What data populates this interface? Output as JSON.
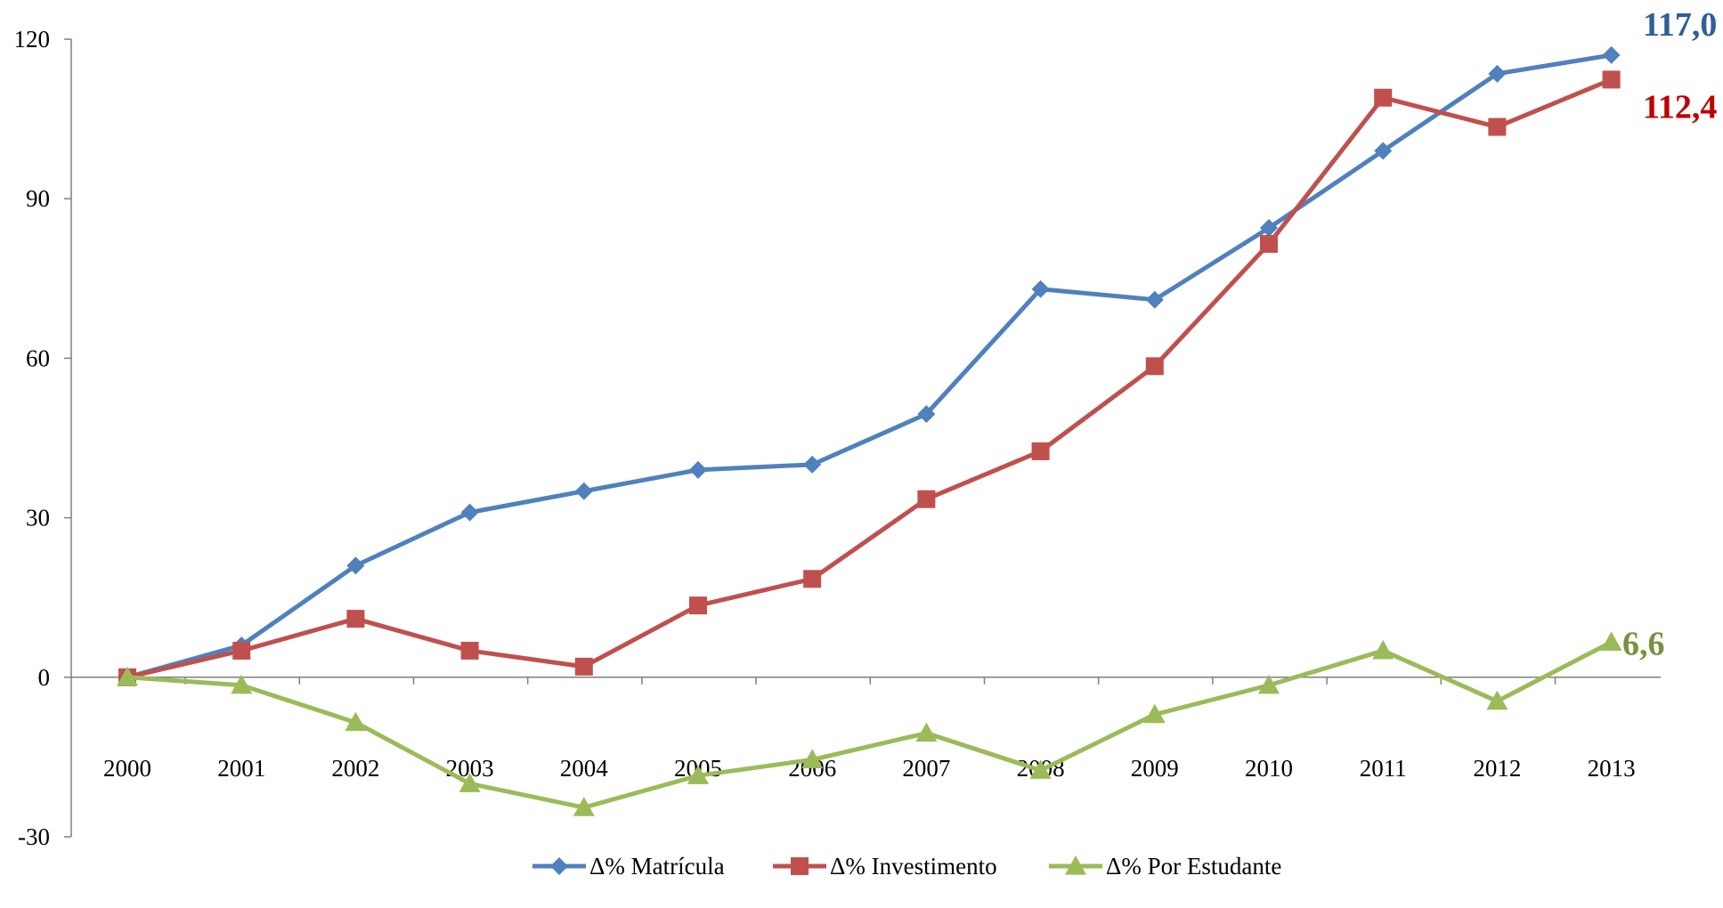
{
  "chart_data": {
    "type": "line",
    "categories": [
      "2000",
      "2001",
      "2002",
      "2003",
      "2004",
      "2005",
      "2006",
      "2007",
      "2008",
      "2009",
      "2010",
      "2011",
      "2012",
      "2013"
    ],
    "y_ticks": [
      "120",
      "90",
      "60",
      "30",
      "0",
      "-30"
    ],
    "ylim": [
      -30,
      120
    ],
    "grid": false,
    "legend_position": "bottom",
    "series": [
      {
        "name": "Δ% Matrícula",
        "color": "#4F81BD",
        "marker": "diamond",
        "values": [
          0,
          6,
          21,
          31,
          35,
          39,
          40,
          49.5,
          73,
          71,
          84.5,
          99,
          113.5,
          117
        ],
        "end_label": "117,0",
        "end_label_color": "#2E5F97"
      },
      {
        "name": "Δ% Investimento",
        "color": "#C0504D",
        "marker": "square",
        "values": [
          0,
          5,
          11,
          5,
          2,
          13.5,
          18.5,
          33.5,
          42.5,
          58.5,
          81.5,
          109,
          103.5,
          112.4
        ],
        "end_label": "112,4",
        "end_label_color": "#C00000"
      },
      {
        "name": "Δ% Por Estudante",
        "color": "#9BBB59",
        "marker": "triangle",
        "values": [
          0,
          -1.5,
          -8.5,
          -20,
          -24.5,
          -18.5,
          -15.5,
          -10.5,
          -17.5,
          -7,
          -1.5,
          5,
          -4.5,
          6.6
        ],
        "end_label": "6,6",
        "end_label_color": "#77933C"
      }
    ]
  }
}
